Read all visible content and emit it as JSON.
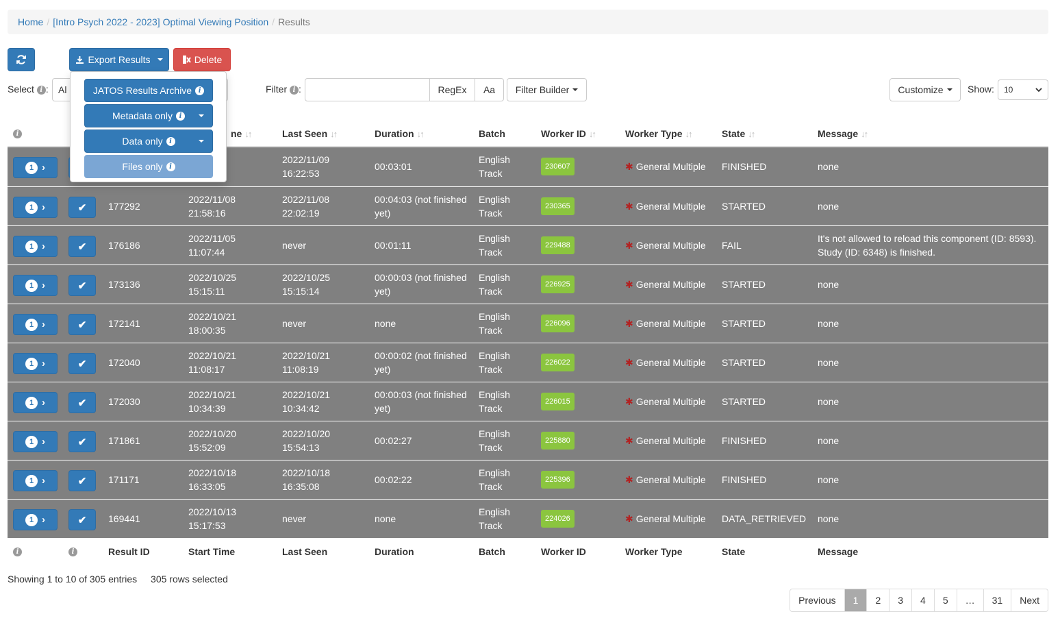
{
  "breadcrumb": {
    "home": "Home",
    "study": "[Intro Psych 2022 - 2023] Optimal Viewing Position",
    "current": "Results"
  },
  "toolbar": {
    "refresh_icon": "refresh-icon",
    "export_label": "Export Results",
    "delete_label": "Delete",
    "select_label": "Select",
    "select_value": "Al",
    "filter_label": "Filter",
    "filter_value": "",
    "regex_label": "RegEx",
    "case_label": "Aa",
    "filter_builder_label": "Filter Builder",
    "customize_label": "Customize",
    "show_label": "Show:",
    "show_value": "10"
  },
  "export_menu": {
    "archive": "JATOS Results Archive",
    "metadata": "Metadata only",
    "data": "Data only",
    "files": "Files only"
  },
  "columns": {
    "result_id": "Result ID",
    "start_time": "Start Time",
    "start_time_partial": "ne",
    "last_seen": "Last Seen",
    "duration": "Duration",
    "batch": "Batch",
    "worker_id": "Worker ID",
    "worker_type": "Worker Type",
    "state": "State",
    "message": "Message"
  },
  "rows": [
    {
      "badge": "1",
      "id": "",
      "start1": "09",
      "start2": "",
      "seen1": "2022/11/09",
      "seen2": "16:22:53",
      "dur1": "00:03:01",
      "dur2": "",
      "batch1": "English",
      "batch2": "Track",
      "worker": "230607",
      "wtype": "General Multiple",
      "state": "FINISHED",
      "msg1": "none",
      "msg2": ""
    },
    {
      "badge": "1",
      "id": "177292",
      "start1": "2022/11/08",
      "start2": "21:58:16",
      "seen1": "2022/11/08",
      "seen2": "22:02:19",
      "dur1": "00:04:03 (not finished",
      "dur2": "yet)",
      "batch1": "English",
      "batch2": "Track",
      "worker": "230365",
      "wtype": "General Multiple",
      "state": "STARTED",
      "msg1": "none",
      "msg2": ""
    },
    {
      "badge": "1",
      "id": "176186",
      "start1": "2022/11/05",
      "start2": "11:07:44",
      "seen1": "never",
      "seen2": "",
      "dur1": "00:01:11",
      "dur2": "",
      "batch1": "English",
      "batch2": "Track",
      "worker": "229488",
      "wtype": "General Multiple",
      "state": "FAIL",
      "msg1": "It's not allowed to reload this component (ID: 8593).",
      "msg2": "Study (ID: 6348) is finished."
    },
    {
      "badge": "1",
      "id": "173136",
      "start1": "2022/10/25",
      "start2": "15:15:11",
      "seen1": "2022/10/25",
      "seen2": "15:15:14",
      "dur1": "00:00:03 (not finished",
      "dur2": "yet)",
      "batch1": "English",
      "batch2": "Track",
      "worker": "226925",
      "wtype": "General Multiple",
      "state": "STARTED",
      "msg1": "none",
      "msg2": ""
    },
    {
      "badge": "1",
      "id": "172141",
      "start1": "2022/10/21",
      "start2": "18:00:35",
      "seen1": "never",
      "seen2": "",
      "dur1": "none",
      "dur2": "",
      "batch1": "English",
      "batch2": "Track",
      "worker": "226096",
      "wtype": "General Multiple",
      "state": "STARTED",
      "msg1": "none",
      "msg2": ""
    },
    {
      "badge": "1",
      "id": "172040",
      "start1": "2022/10/21",
      "start2": "11:08:17",
      "seen1": "2022/10/21",
      "seen2": "11:08:19",
      "dur1": "00:00:02 (not finished",
      "dur2": "yet)",
      "batch1": "English",
      "batch2": "Track",
      "worker": "226022",
      "wtype": "General Multiple",
      "state": "STARTED",
      "msg1": "none",
      "msg2": ""
    },
    {
      "badge": "1",
      "id": "172030",
      "start1": "2022/10/21",
      "start2": "10:34:39",
      "seen1": "2022/10/21",
      "seen2": "10:34:42",
      "dur1": "00:00:03 (not finished",
      "dur2": "yet)",
      "batch1": "English",
      "batch2": "Track",
      "worker": "226015",
      "wtype": "General Multiple",
      "state": "STARTED",
      "msg1": "none",
      "msg2": ""
    },
    {
      "badge": "1",
      "id": "171861",
      "start1": "2022/10/20",
      "start2": "15:52:09",
      "seen1": "2022/10/20",
      "seen2": "15:54:13",
      "dur1": "00:02:27",
      "dur2": "",
      "batch1": "English",
      "batch2": "Track",
      "worker": "225880",
      "wtype": "General Multiple",
      "state": "FINISHED",
      "msg1": "none",
      "msg2": ""
    },
    {
      "badge": "1",
      "id": "171171",
      "start1": "2022/10/18",
      "start2": "16:33:05",
      "seen1": "2022/10/18",
      "seen2": "16:35:08",
      "dur1": "00:02:22",
      "dur2": "",
      "batch1": "English",
      "batch2": "Track",
      "worker": "225396",
      "wtype": "General Multiple",
      "state": "FINISHED",
      "msg1": "none",
      "msg2": ""
    },
    {
      "badge": "1",
      "id": "169441",
      "start1": "2022/10/13",
      "start2": "15:17:53",
      "seen1": "never",
      "seen2": "",
      "dur1": "none",
      "dur2": "",
      "batch1": "English",
      "batch2": "Track",
      "worker": "224026",
      "wtype": "General Multiple",
      "state": "DATA_RETRIEVED",
      "msg1": "none",
      "msg2": ""
    }
  ],
  "footer": {
    "showing": "Showing 1 to 10 of 305 entries",
    "selected": "305 rows selected"
  },
  "pagination": {
    "previous": "Previous",
    "pages": [
      "1",
      "2",
      "3",
      "4",
      "5",
      "…",
      "31"
    ],
    "next": "Next",
    "current": "1"
  },
  "colors": {
    "primary": "#337ab7",
    "danger": "#d9534f",
    "row_bg": "#808080",
    "worker_badge": "#8bc53f"
  }
}
